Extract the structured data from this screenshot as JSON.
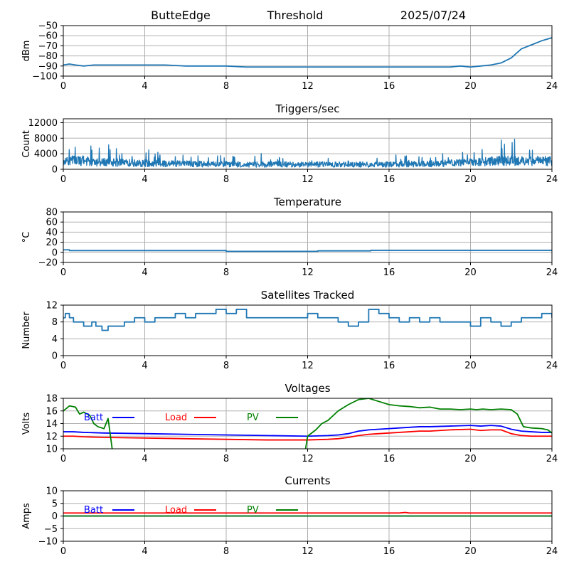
{
  "header": {
    "station": "ButteEdge",
    "mode": "Threshold",
    "date": "2025/07/24"
  },
  "colors": {
    "series": "#1f77b4",
    "batt": "#0000ff",
    "load": "#ff0000",
    "pv": "#008000",
    "grid": "#b0b0b0",
    "axis": "#000000",
    "text": "#000000"
  },
  "chart_data": [
    {
      "id": "signal",
      "type": "line",
      "title": "",
      "xlabel": "",
      "ylabel": "dBm",
      "xlim": [
        0,
        24
      ],
      "ylim": [
        -100,
        -50
      ],
      "xticks": [
        0,
        4,
        8,
        12,
        16,
        20,
        24
      ],
      "yticks": [
        -100,
        -90,
        -80,
        -70,
        -60,
        -50
      ],
      "grid": true,
      "series": [
        {
          "color": "#1f77b4",
          "style": "line",
          "x": [
            0,
            0.3,
            0.6,
            1,
            1.5,
            2,
            3,
            4,
            5,
            6,
            7,
            8,
            9,
            10,
            11,
            12,
            13,
            14,
            15,
            16,
            17,
            18,
            19,
            19.5,
            20,
            20.5,
            21,
            21.5,
            22,
            22.5,
            23,
            23.5,
            24
          ],
          "y": [
            -89,
            -88,
            -89,
            -90,
            -89,
            -89,
            -89,
            -89,
            -89,
            -90,
            -90,
            -90,
            -91,
            -91,
            -91,
            -91,
            -91,
            -91,
            -91,
            -91,
            -91,
            -91,
            -91,
            -90,
            -91,
            -90,
            -89,
            -87,
            -82,
            -73,
            -69,
            -65,
            -62
          ]
        }
      ]
    },
    {
      "id": "triggers",
      "type": "line",
      "title": "Triggers/sec",
      "xlabel": "",
      "ylabel": "Count",
      "xlim": [
        0,
        24
      ],
      "ylim": [
        0,
        13000
      ],
      "xticks": [
        0,
        4,
        8,
        12,
        16,
        20,
        24
      ],
      "yticks": [
        0,
        4000,
        8000,
        12000
      ],
      "grid": true,
      "series": [
        {
          "color": "#1f77b4",
          "style": "noisy",
          "x": [
            0,
            0.5,
            1,
            1.5,
            2,
            3,
            4,
            5,
            6,
            7,
            8,
            9,
            10,
            11,
            12,
            13,
            14,
            15,
            16,
            17,
            18,
            19,
            20,
            20.5,
            21,
            21.5,
            22,
            22.5,
            23,
            23.5,
            24
          ],
          "y": [
            2500,
            2700,
            2600,
            2300,
            2200,
            2000,
            1900,
            1800,
            1700,
            1600,
            1600,
            1500,
            1500,
            1500,
            1500,
            1500,
            1500,
            1500,
            1500,
            1600,
            1700,
            1900,
            2100,
            2300,
            2500,
            2700,
            2700,
            2600,
            2600,
            2600,
            2600
          ]
        }
      ]
    },
    {
      "id": "temperature",
      "type": "line",
      "title": "Temperature",
      "xlabel": "",
      "ylabel": "°C",
      "xlim": [
        0,
        24
      ],
      "ylim": [
        -20,
        80
      ],
      "xticks": [
        0,
        4,
        8,
        12,
        16,
        20,
        24
      ],
      "yticks": [
        -20,
        0,
        20,
        40,
        60,
        80
      ],
      "grid": true,
      "series": [
        {
          "color": "#1f77b4",
          "style": "step",
          "x": [
            0,
            0.3,
            8,
            12.5,
            15.1,
            24
          ],
          "y": [
            5,
            3.5,
            2,
            3,
            4,
            4
          ]
        }
      ]
    },
    {
      "id": "satellites",
      "type": "line",
      "title": "Satellites Tracked",
      "xlabel": "",
      "ylabel": "Number",
      "xlim": [
        0,
        24
      ],
      "ylim": [
        0,
        12
      ],
      "xticks": [
        0,
        4,
        8,
        12,
        16,
        20,
        24
      ],
      "yticks": [
        0,
        4,
        8,
        12
      ],
      "grid": true,
      "series": [
        {
          "color": "#1f77b4",
          "style": "step",
          "x": [
            0,
            0.1,
            0.3,
            0.5,
            1,
            1.4,
            1.6,
            1.9,
            2.2,
            3,
            3.5,
            4,
            4.5,
            5,
            5.5,
            6,
            6.5,
            7,
            7.5,
            8,
            8.5,
            9,
            9.5,
            10,
            10.5,
            11,
            11.5,
            12,
            12.5,
            13,
            13.5,
            14,
            14.5,
            15,
            15.5,
            16,
            16.5,
            17,
            17.5,
            18,
            18.5,
            19,
            19.5,
            20,
            20.5,
            21,
            21.5,
            22,
            22.5,
            23,
            23.5,
            24
          ],
          "y": [
            9,
            10,
            9,
            8,
            7,
            8,
            7,
            6,
            7,
            8,
            9,
            8,
            9,
            9,
            10,
            9,
            10,
            10,
            11,
            10,
            11,
            9,
            9,
            9,
            9,
            9,
            9,
            10,
            9,
            9,
            8,
            7,
            8,
            11,
            10,
            9,
            8,
            9,
            8,
            9,
            8,
            8,
            8,
            7,
            9,
            8,
            7,
            8,
            9,
            9,
            10,
            9
          ]
        }
      ]
    },
    {
      "id": "voltages",
      "type": "line",
      "title": "Voltages",
      "xlabel": "",
      "ylabel": "Volts",
      "xlim": [
        0,
        24
      ],
      "ylim": [
        10,
        18
      ],
      "xticks": [
        0,
        4,
        8,
        12,
        16,
        20,
        24
      ],
      "yticks": [
        10,
        12,
        14,
        16,
        18
      ],
      "grid": true,
      "legend": [
        {
          "name": "Batt",
          "color": "#0000ff"
        },
        {
          "name": "Load",
          "color": "#ff0000"
        },
        {
          "name": "PV",
          "color": "#008000"
        }
      ],
      "series": [
        {
          "name": "Batt",
          "color": "#0000ff",
          "style": "line",
          "x": [
            0,
            0.5,
            1,
            2,
            4,
            6,
            8,
            10,
            12,
            13,
            13.5,
            14,
            14.5,
            15,
            15.5,
            16,
            16.5,
            17,
            17.5,
            18,
            19,
            20,
            20.5,
            21,
            21.5,
            22,
            22.5,
            23,
            23.5,
            24
          ],
          "y": [
            12.7,
            12.7,
            12.6,
            12.5,
            12.4,
            12.3,
            12.2,
            12.1,
            12.0,
            12.1,
            12.2,
            12.4,
            12.8,
            13.0,
            13.1,
            13.2,
            13.3,
            13.4,
            13.5,
            13.5,
            13.6,
            13.7,
            13.6,
            13.7,
            13.6,
            13.1,
            12.8,
            12.7,
            12.6,
            12.6
          ]
        },
        {
          "name": "Load",
          "color": "#ff0000",
          "style": "line",
          "x": [
            0,
            0.5,
            1,
            2,
            4,
            6,
            8,
            10,
            12,
            13,
            13.5,
            14,
            14.5,
            15,
            15.5,
            16,
            16.5,
            17,
            17.5,
            18,
            19,
            20,
            20.5,
            21,
            21.5,
            22,
            22.5,
            23,
            23.5,
            24
          ],
          "y": [
            12.0,
            12.0,
            11.9,
            11.8,
            11.7,
            11.6,
            11.5,
            11.4,
            11.4,
            11.5,
            11.6,
            11.8,
            12.1,
            12.3,
            12.4,
            12.5,
            12.6,
            12.7,
            12.8,
            12.8,
            13.0,
            13.1,
            12.9,
            13.0,
            13.0,
            12.4,
            12.1,
            12.0,
            12.0,
            12.0
          ]
        },
        {
          "name": "PV",
          "color": "#008000",
          "style": "line",
          "x": [
            0,
            0.3,
            0.6,
            0.8,
            1,
            1.3,
            1.5,
            1.7,
            2,
            2.2,
            2.4,
            2.6,
            11.8,
            12,
            12.4,
            12.7,
            13,
            13.5,
            14,
            14.5,
            15,
            15.5,
            16,
            16.5,
            17,
            17.5,
            18,
            18.5,
            19,
            19.5,
            20,
            20.3,
            20.6,
            21,
            21.5,
            22,
            22.3,
            22.6,
            23,
            23.5,
            23.8,
            24
          ],
          "y": [
            16.0,
            16.8,
            16.6,
            15.5,
            15.8,
            15.3,
            14.0,
            13.5,
            13.2,
            14.8,
            10.0,
            8.0,
            8.0,
            12.0,
            13.0,
            14.0,
            14.5,
            16.0,
            17.0,
            17.8,
            18.0,
            17.5,
            17.0,
            16.8,
            16.7,
            16.5,
            16.6,
            16.3,
            16.3,
            16.2,
            16.3,
            16.2,
            16.3,
            16.2,
            16.3,
            16.2,
            15.5,
            13.5,
            13.3,
            13.2,
            13.0,
            12.5
          ]
        }
      ]
    },
    {
      "id": "currents",
      "type": "line",
      "title": "Currents",
      "xlabel": "",
      "ylabel": "Amps",
      "xlim": [
        0,
        24
      ],
      "ylim": [
        -10,
        10
      ],
      "xticks": [
        0,
        4,
        8,
        12,
        16,
        20,
        24
      ],
      "yticks": [
        -10,
        -5,
        0,
        5,
        10
      ],
      "grid": true,
      "legend": [
        {
          "name": "Batt",
          "color": "#0000ff"
        },
        {
          "name": "Load",
          "color": "#ff0000"
        },
        {
          "name": "PV",
          "color": "#008000"
        }
      ],
      "series": [
        {
          "name": "Batt",
          "color": "#0000ff",
          "style": "line",
          "x": [
            0,
            24
          ],
          "y": [
            0,
            0
          ]
        },
        {
          "name": "Load",
          "color": "#ff0000",
          "style": "line",
          "x": [
            0,
            16.5,
            16.8,
            17,
            24
          ],
          "y": [
            1.2,
            1.2,
            1.4,
            1.2,
            1.2
          ]
        },
        {
          "name": "PV",
          "color": "#008000",
          "style": "line",
          "x": [
            0,
            24
          ],
          "y": [
            0,
            0
          ]
        }
      ]
    }
  ]
}
